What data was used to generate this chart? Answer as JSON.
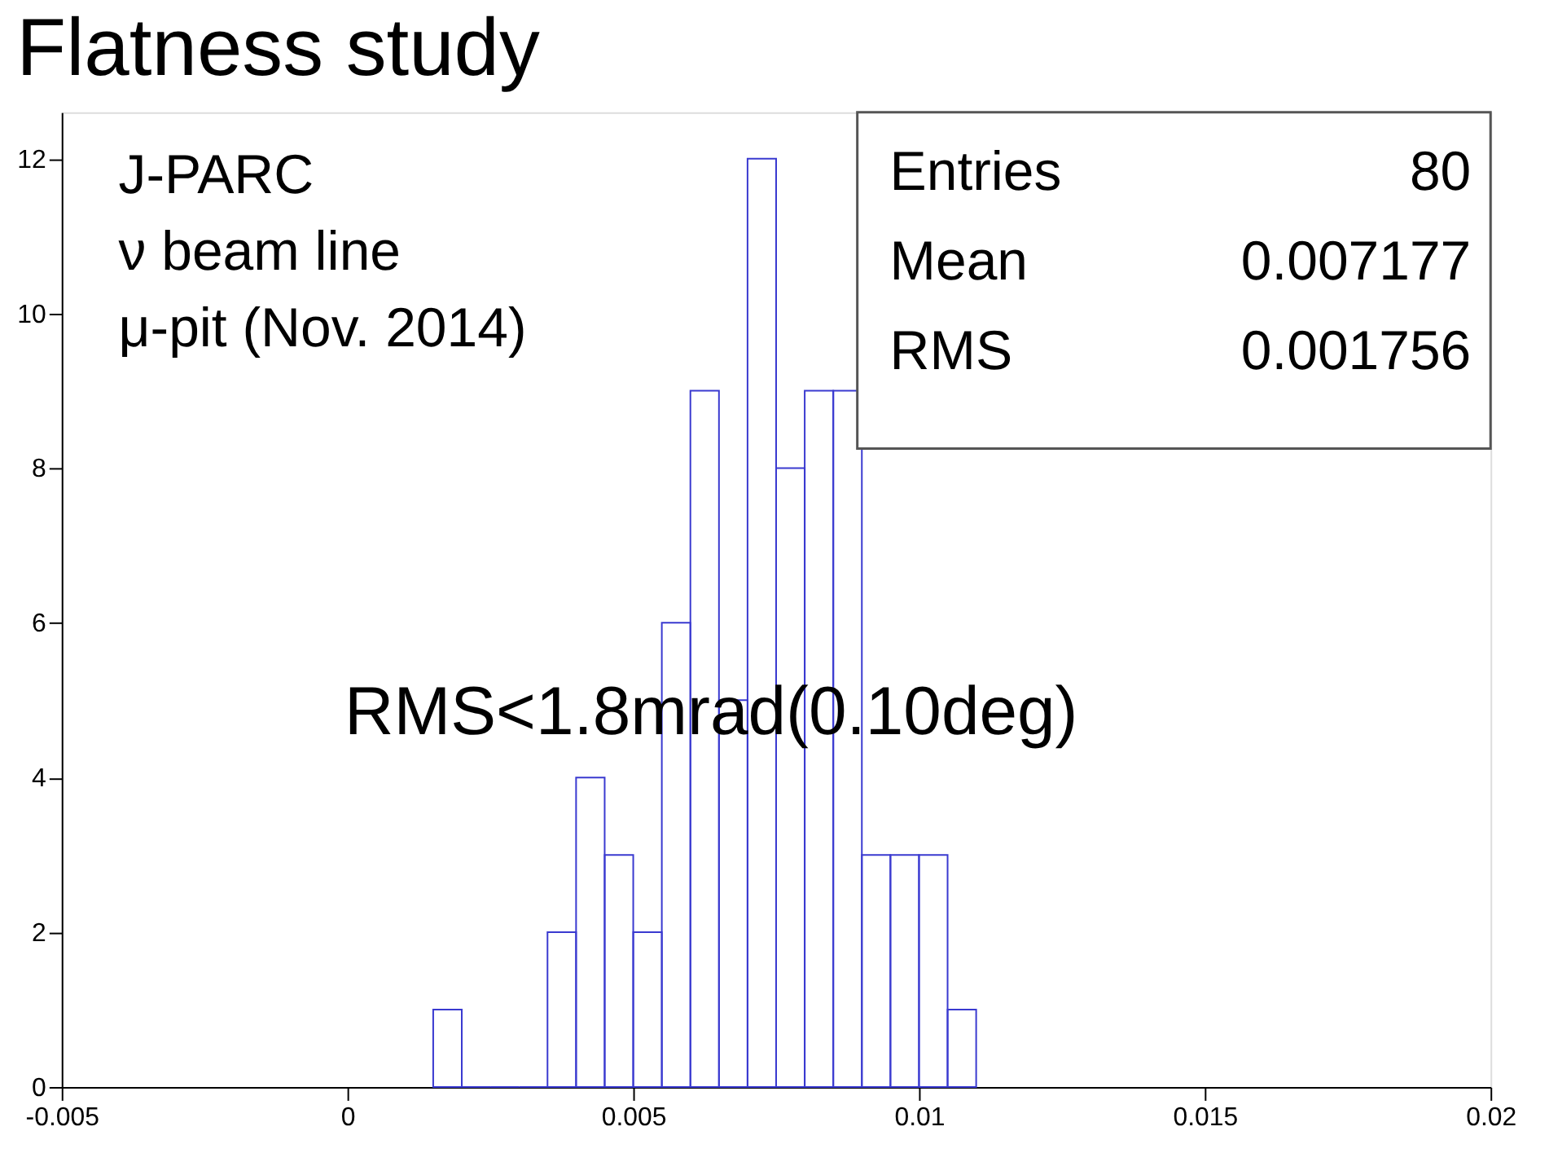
{
  "chart_data": {
    "type": "histogram",
    "title": "Flatness study",
    "bins": [
      0.0015,
      0.002,
      0.0025,
      0.003,
      0.0035,
      0.004,
      0.0045,
      0.005,
      0.0055,
      0.006,
      0.0065,
      0.007,
      0.0075,
      0.008,
      0.0085,
      0.009,
      0.0095,
      0.01,
      0.0105,
      0.011
    ],
    "values": [
      1,
      0,
      0,
      0,
      2,
      4,
      3,
      2,
      6,
      9,
      5,
      12,
      8,
      9,
      9,
      3,
      3,
      3,
      1
    ],
    "color": "#3a3ad0",
    "xlim": [
      -0.005,
      0.02
    ],
    "xticks": [
      -0.005,
      0,
      0.005,
      0.01,
      0.015,
      0.02
    ],
    "ylim": [
      0,
      12.6
    ],
    "yticks": [
      0,
      2,
      4,
      6,
      8,
      10,
      12
    ],
    "grid": false,
    "annotations": [
      "J-PARC",
      "ν beam line",
      "μ-pit (Nov. 2014)",
      "RMS<1.8mrad(0.10deg)",
      "Entries",
      "80",
      "Mean",
      "0.007177",
      "RMS",
      "0.001756"
    ]
  }
}
